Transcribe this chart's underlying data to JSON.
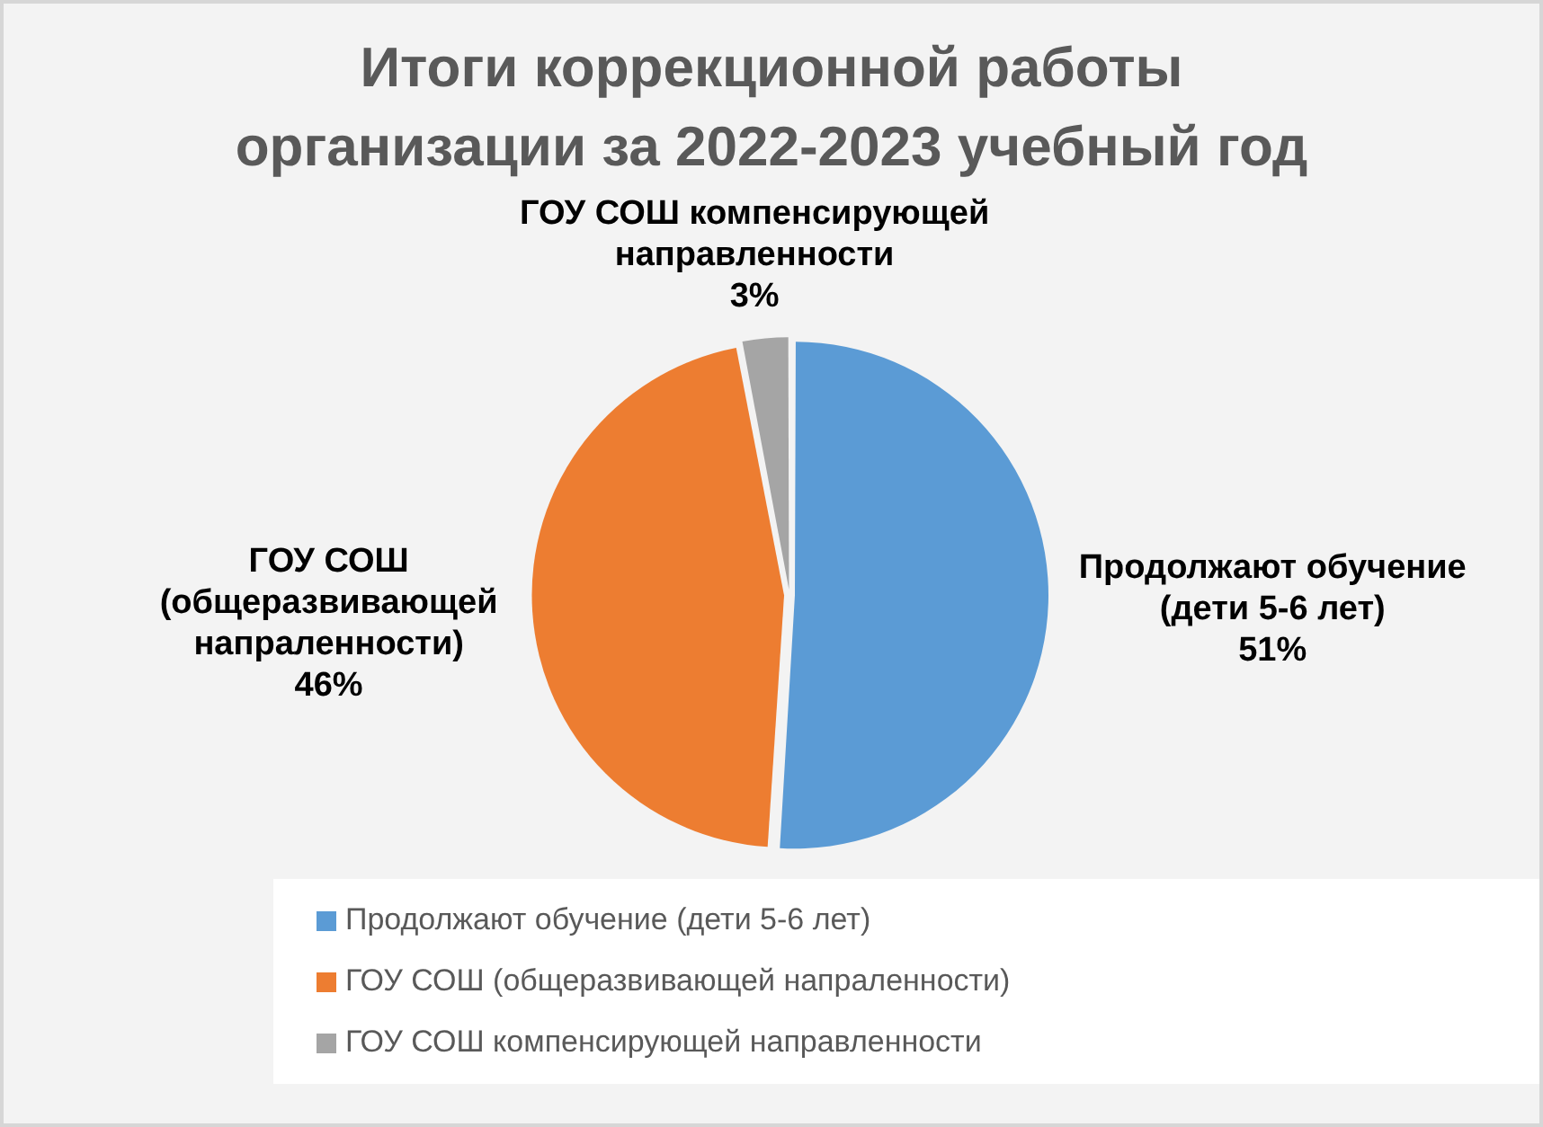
{
  "chart_data": {
    "type": "pie",
    "title": "Итоги коррекционной работы организации за 2022-2023 учебный год",
    "categories": [
      "Продолжают обучение (дети 5-6 лет)",
      "ГОУ СОШ (общеразвивающей напраленности)",
      "ГОУ СОШ компенсирующей направленности"
    ],
    "values": [
      51,
      46,
      3
    ],
    "colors": [
      "#5b9bd5",
      "#ed7d31",
      "#a5a5a5"
    ],
    "value_labels": [
      "51%",
      "46%",
      "3%"
    ],
    "legend": "bottom"
  }
}
